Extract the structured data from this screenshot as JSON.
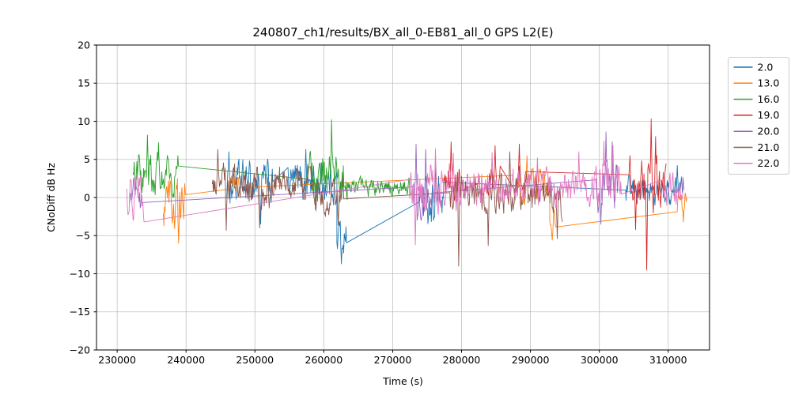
{
  "chart_data": {
    "type": "line",
    "title": "240807_ch1/results/BX_all_0-EB81_all_0 GPS L2(E)",
    "xlabel": "Time (s)",
    "ylabel": "CNoDiff dB Hz",
    "xlim": [
      227000,
      316000
    ],
    "ylim": [
      -20,
      20
    ],
    "xticks": [
      230000,
      240000,
      250000,
      260000,
      270000,
      280000,
      290000,
      300000,
      310000
    ],
    "yticks": [
      -20,
      -15,
      -10,
      -5,
      0,
      5,
      10,
      15,
      20
    ],
    "grid": true,
    "grid_color": "#c0c0c0",
    "spine_color": "#000000",
    "legend_position": "outside-right",
    "legend_edge_color": "#cccccc",
    "series": [
      {
        "name": "2.0",
        "color": "#1f77b4",
        "segments": [
          {
            "t0": 245900,
            "t1": 252600,
            "mean": 1.8,
            "amp": 2.6
          },
          {
            "t0": 254800,
            "t1": 261900,
            "mean": 2.0,
            "amp": 2.4
          },
          {
            "t0": 261900,
            "t1": 263300,
            "mean": -5.0,
            "amp": 2.2
          },
          {
            "t0": 273900,
            "t1": 277400,
            "mean": -0.5,
            "amp": 2.8
          },
          {
            "t0": 303800,
            "t1": 312200,
            "mean": 0.8,
            "amp": 1.7
          }
        ],
        "spikes": [
          {
            "t": 246200,
            "v": 6.0
          },
          {
            "t": 250800,
            "v": -3.5
          },
          {
            "t": 257400,
            "v": 6.3
          },
          {
            "t": 262600,
            "v": -8.7
          },
          {
            "t": 276300,
            "v": 4.5
          },
          {
            "t": 311300,
            "v": 4.2
          }
        ]
      },
      {
        "name": "13.0",
        "color": "#ff7f0e",
        "segments": [
          {
            "t0": 236700,
            "t1": 239900,
            "mean": -0.8,
            "amp": 2.8
          },
          {
            "t0": 246200,
            "t1": 247700,
            "mean": 1.6,
            "amp": 1.2
          },
          {
            "t0": 287400,
            "t1": 292800,
            "mean": 1.8,
            "amp": 2.4
          },
          {
            "t0": 292800,
            "t1": 293700,
            "mean": -3.5,
            "amp": 1.8
          },
          {
            "t0": 311300,
            "t1": 312700,
            "mean": -0.5,
            "amp": 1.8
          }
        ],
        "spikes": [
          {
            "t": 238900,
            "v": -6.0
          },
          {
            "t": 239800,
            "v": 1.8
          },
          {
            "t": 289500,
            "v": 5.5
          },
          {
            "t": 293200,
            "v": -5.6
          },
          {
            "t": 312200,
            "v": -3.2
          }
        ]
      },
      {
        "name": "16.0",
        "color": "#2ca02c",
        "segments": [
          {
            "t0": 232300,
            "t1": 238900,
            "mean": 3.0,
            "amp": 2.4
          },
          {
            "t0": 257400,
            "t1": 263400,
            "mean": 2.8,
            "amp": 2.8
          },
          {
            "t0": 263400,
            "t1": 272600,
            "mean": 1.5,
            "amp": 1.1
          }
        ],
        "spikes": [
          {
            "t": 234400,
            "v": 8.2
          },
          {
            "t": 236000,
            "v": 7.2
          },
          {
            "t": 238850,
            "v": 5.5
          },
          {
            "t": 257450,
            "v": 2.0
          },
          {
            "t": 258800,
            "v": -1.5
          },
          {
            "t": 261100,
            "v": 10.2
          }
        ]
      },
      {
        "name": "19.0",
        "color": "#d62728",
        "segments": [
          {
            "t0": 277400,
            "t1": 279900,
            "mean": 2.0,
            "amp": 2.4
          },
          {
            "t0": 282400,
            "t1": 285600,
            "mean": 2.0,
            "amp": 2.2
          },
          {
            "t0": 287800,
            "t1": 289300,
            "mean": 2.3,
            "amp": 2.2
          },
          {
            "t0": 304300,
            "t1": 309700,
            "mean": 1.5,
            "amp": 3.2
          }
        ],
        "spikes": [
          {
            "t": 278500,
            "v": 7.3
          },
          {
            "t": 284900,
            "v": 6.8
          },
          {
            "t": 288400,
            "v": 7.0
          },
          {
            "t": 305300,
            "v": -4.2
          },
          {
            "t": 306900,
            "v": -9.5
          },
          {
            "t": 307500,
            "v": 10.3
          },
          {
            "t": 308200,
            "v": 8.0
          }
        ]
      },
      {
        "name": "20.0",
        "color": "#9467bd",
        "segments": [
          {
            "t0": 231800,
            "t1": 233600,
            "mean": 0.0,
            "amp": 2.6
          },
          {
            "t0": 272900,
            "t1": 275700,
            "mean": 0.5,
            "amp": 2.8
          },
          {
            "t0": 299400,
            "t1": 302700,
            "mean": 1.5,
            "amp": 3.0
          }
        ],
        "spikes": [
          {
            "t": 273400,
            "v": 7.0
          },
          {
            "t": 274800,
            "v": 6.3
          },
          {
            "t": 300200,
            "v": -3.5
          },
          {
            "t": 301000,
            "v": 8.6
          },
          {
            "t": 301900,
            "v": 7.3
          }
        ]
      },
      {
        "name": "21.0",
        "color": "#8c564b",
        "segments": [
          {
            "t0": 243800,
            "t1": 248600,
            "mean": 2.0,
            "amp": 2.2
          },
          {
            "t0": 248600,
            "t1": 253600,
            "mean": 1.0,
            "amp": 2.4
          },
          {
            "t0": 253600,
            "t1": 258300,
            "mean": 1.8,
            "amp": 1.8
          },
          {
            "t0": 258300,
            "t1": 262900,
            "mean": 0.0,
            "amp": 2.0
          },
          {
            "t0": 278300,
            "t1": 288700,
            "mean": 1.0,
            "amp": 2.5
          },
          {
            "t0": 288700,
            "t1": 294700,
            "mean": 0.0,
            "amp": 2.5
          }
        ],
        "spikes": [
          {
            "t": 244600,
            "v": 6.3
          },
          {
            "t": 245800,
            "v": -4.3
          },
          {
            "t": 250700,
            "v": -4.0
          },
          {
            "t": 262100,
            "v": -3.6
          },
          {
            "t": 279600,
            "v": -9.0
          },
          {
            "t": 283900,
            "v": -6.3
          },
          {
            "t": 287000,
            "v": 6.0
          },
          {
            "t": 293900,
            "v": -5.4
          }
        ]
      },
      {
        "name": "22.0",
        "color": "#e377c2",
        "segments": [
          {
            "t0": 231400,
            "t1": 233900,
            "mean": 0.3,
            "amp": 2.8
          },
          {
            "t0": 272400,
            "t1": 279700,
            "mean": 1.0,
            "amp": 2.8
          },
          {
            "t0": 279700,
            "t1": 299200,
            "mean": 1.3,
            "amp": 2.2
          },
          {
            "t0": 299200,
            "t1": 303200,
            "mean": 1.5,
            "amp": 2.8
          },
          {
            "t0": 309300,
            "t1": 312300,
            "mean": 1.0,
            "amp": 2.0
          }
        ],
        "spikes": [
          {
            "t": 273300,
            "v": -6.2
          },
          {
            "t": 276200,
            "v": 6.4
          },
          {
            "t": 278800,
            "v": 5.8
          },
          {
            "t": 284400,
            "v": 5.9
          },
          {
            "t": 291000,
            "v": 5.2
          },
          {
            "t": 297000,
            "v": 6.0
          },
          {
            "t": 300700,
            "v": 7.4
          },
          {
            "t": 302000,
            "v": 6.8
          }
        ]
      }
    ]
  }
}
